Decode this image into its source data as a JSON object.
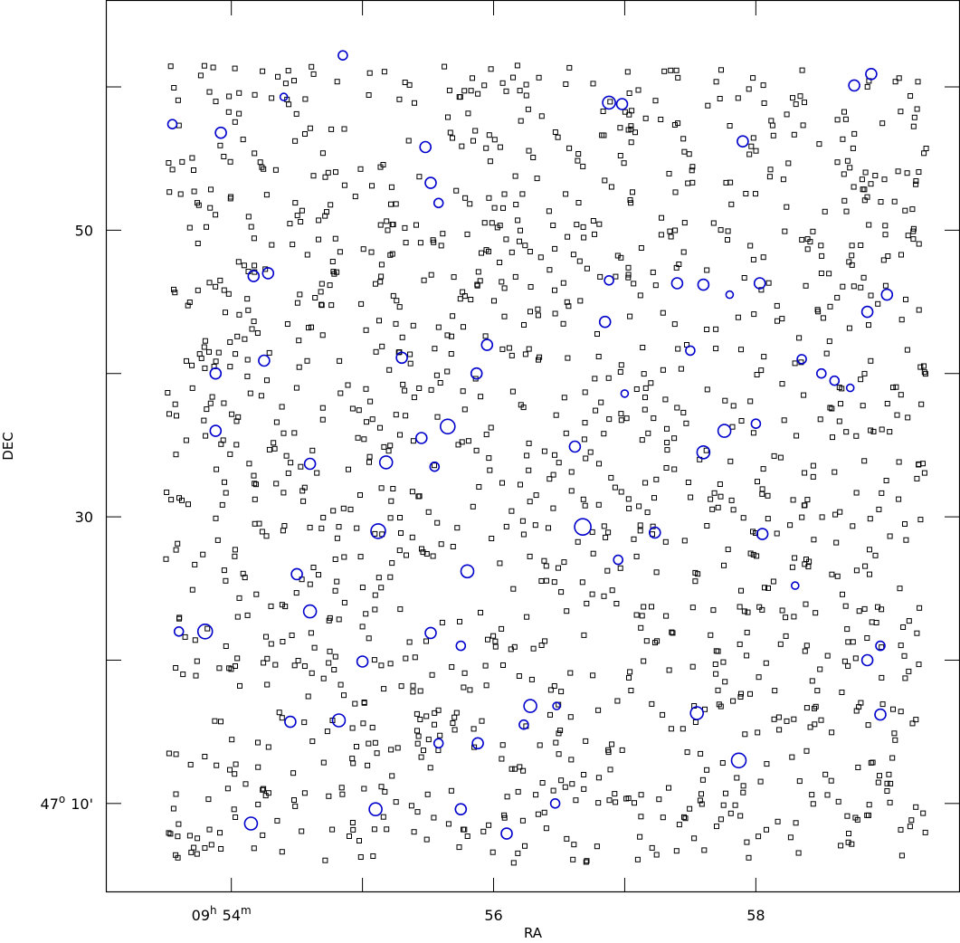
{
  "chart_data": {
    "type": "scatter",
    "title": "",
    "xlabel": "RA",
    "ylabel": "DEC",
    "xlim": [
      53.05,
      59.55
    ],
    "ylim": [
      3.8,
      66.0
    ],
    "grid": false,
    "legend": "none",
    "x_ticks": [
      {
        "value": 54,
        "label_main": "09",
        "label_sup": "h",
        "label_rest": "54",
        "label_sup2": "m"
      },
      {
        "value": 56,
        "label_main": "56",
        "label_sup": "",
        "label_rest": "",
        "label_sup2": ""
      },
      {
        "value": 58,
        "label_main": "58",
        "label_sup": "",
        "label_rest": "",
        "label_sup2": ""
      }
    ],
    "x_minor_ticks": [
      55,
      57
    ],
    "y_ticks": [
      {
        "value": 10,
        "label_main": "47",
        "label_sup": "o",
        "label_rest": "10'",
        "label_sup2": ""
      },
      {
        "value": 30,
        "label_main": "30",
        "label_sup": "",
        "label_rest": "",
        "label_sup2": ""
      },
      {
        "value": 50,
        "label_main": "50",
        "label_sup": "",
        "label_rest": "",
        "label_sup2": ""
      }
    ],
    "y_minor_ticks": [
      20,
      40,
      60
    ],
    "series": [
      {
        "marker": "square",
        "color": "#000000",
        "generated": true,
        "count": 1450,
        "x_range": [
          53.5,
          59.3
        ],
        "y_range": [
          5.8,
          61.5
        ],
        "seed": 20240517
      },
      {
        "marker": "circle",
        "color": "#0000cc",
        "points": [
          [
            53.55,
            57.4,
            5
          ],
          [
            53.92,
            56.8,
            6
          ],
          [
            54.4,
            59.3,
            4
          ],
          [
            54.85,
            62.2,
            5
          ],
          [
            55.48,
            55.8,
            6
          ],
          [
            55.52,
            53.3,
            6
          ],
          [
            55.58,
            51.9,
            5
          ],
          [
            56.88,
            58.9,
            7
          ],
          [
            56.98,
            58.8,
            6
          ],
          [
            57.9,
            56.2,
            6
          ],
          [
            58.75,
            60.1,
            6
          ],
          [
            58.88,
            60.9,
            6
          ],
          [
            54.17,
            46.8,
            6
          ],
          [
            54.28,
            47.0,
            6
          ],
          [
            56.88,
            46.5,
            5
          ],
          [
            57.4,
            46.3,
            6
          ],
          [
            57.6,
            46.2,
            6
          ],
          [
            57.8,
            45.5,
            4
          ],
          [
            58.03,
            46.3,
            6
          ],
          [
            58.85,
            44.3,
            6
          ],
          [
            59.0,
            45.5,
            6
          ],
          [
            53.88,
            40.0,
            6
          ],
          [
            54.25,
            40.9,
            6
          ],
          [
            55.3,
            41.1,
            6
          ],
          [
            55.95,
            42.0,
            6
          ],
          [
            55.87,
            40.0,
            6
          ],
          [
            56.85,
            43.6,
            6
          ],
          [
            57.0,
            38.6,
            4
          ],
          [
            57.5,
            41.6,
            5
          ],
          [
            58.35,
            41.0,
            5
          ],
          [
            58.5,
            40.0,
            5
          ],
          [
            58.6,
            39.5,
            5
          ],
          [
            58.72,
            39.0,
            4
          ],
          [
            53.88,
            36.0,
            6
          ],
          [
            54.6,
            33.7,
            6
          ],
          [
            55.18,
            33.8,
            7
          ],
          [
            55.45,
            35.5,
            6
          ],
          [
            55.65,
            36.3,
            8
          ],
          [
            55.55,
            33.5,
            5
          ],
          [
            56.62,
            34.9,
            6
          ],
          [
            57.6,
            34.5,
            7
          ],
          [
            57.76,
            36.0,
            7
          ],
          [
            58.0,
            36.5,
            5
          ],
          [
            53.8,
            22.0,
            8
          ],
          [
            53.6,
            22.0,
            5
          ],
          [
            54.5,
            26.0,
            6
          ],
          [
            54.6,
            23.4,
            7
          ],
          [
            55.12,
            29.0,
            8
          ],
          [
            55.8,
            26.2,
            7
          ],
          [
            55.52,
            21.9,
            6
          ],
          [
            55.75,
            21.0,
            5
          ],
          [
            56.68,
            29.3,
            9
          ],
          [
            56.95,
            27.0,
            5
          ],
          [
            57.23,
            28.9,
            6
          ],
          [
            58.05,
            28.8,
            6
          ],
          [
            58.3,
            25.2,
            4
          ],
          [
            55.0,
            19.9,
            6
          ],
          [
            54.45,
            15.7,
            6
          ],
          [
            54.82,
            15.8,
            7
          ],
          [
            55.58,
            14.2,
            5
          ],
          [
            55.88,
            14.2,
            6
          ],
          [
            56.28,
            16.8,
            7
          ],
          [
            56.48,
            16.8,
            4
          ],
          [
            57.55,
            16.3,
            7
          ],
          [
            57.87,
            13.0,
            8
          ],
          [
            58.95,
            16.2,
            6
          ],
          [
            58.85,
            20.0,
            6
          ],
          [
            58.95,
            21.0,
            5
          ],
          [
            54.15,
            8.6,
            7
          ],
          [
            55.1,
            9.6,
            7
          ],
          [
            55.75,
            9.6,
            6
          ],
          [
            56.1,
            7.9,
            6
          ],
          [
            56.47,
            10.0,
            5
          ],
          [
            56.23,
            15.5,
            5
          ]
        ]
      }
    ]
  }
}
